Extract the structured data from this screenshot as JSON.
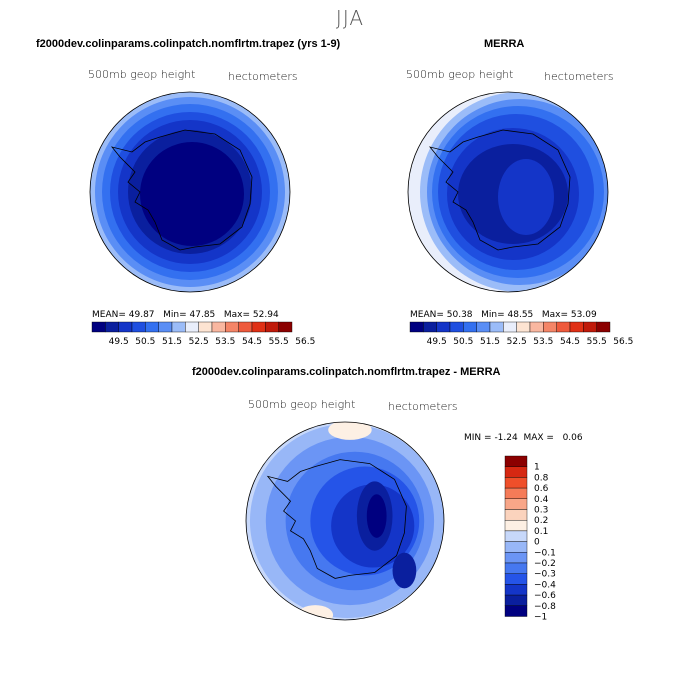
{
  "figure_title": "JJA",
  "colors": {
    "abs_scale": [
      "#000080",
      "#0a1f9e",
      "#1435c8",
      "#1f4fe0",
      "#3370f0",
      "#5a8ef5",
      "#9bbcf8",
      "#e9eefb",
      "#fde4d2",
      "#f9b7a0",
      "#f48567",
      "#ee5a3c",
      "#e03015",
      "#c01a0a",
      "#8b0000"
    ],
    "diff_scale": [
      "#000080",
      "#0a1f9e",
      "#1435c8",
      "#2554e8",
      "#4678f0",
      "#6b95f5",
      "#98b7f7",
      "#c7d8fa",
      "#fdf0e4",
      "#fbd3bd",
      "#f8a688",
      "#f57b58",
      "#ef4f2a",
      "#d62812",
      "#8b0000"
    ]
  },
  "chart_data": [
    {
      "type": "heatmap",
      "subtype": "polar-map",
      "panel_title": "f2000dev.colinparams.colinpatch.nomflrtm.trapez (yrs 1-9)",
      "field_label": "500mb geop height",
      "units_label": "hectometers",
      "stats": {
        "mean_label": "MEAN=",
        "mean": "49.87",
        "min_label": "Min=",
        "min": "47.85",
        "max_label": "Max=",
        "max": "52.94"
      },
      "colorbar_ticks": [
        "49.5",
        "50.5",
        "51.5",
        "52.5",
        "53.5",
        "54.5",
        "55.5",
        "56.5"
      ],
      "colorbar_range": [
        49.0,
        57.0
      ]
    },
    {
      "type": "heatmap",
      "subtype": "polar-map",
      "panel_title": "MERRA",
      "field_label": "500mb geop height",
      "units_label": "hectometers",
      "stats": {
        "mean_label": "MEAN=",
        "mean": "50.38",
        "min_label": "Min=",
        "min": "48.55",
        "max_label": "Max=",
        "max": "53.09"
      },
      "colorbar_ticks": [
        "49.5",
        "50.5",
        "51.5",
        "52.5",
        "53.5",
        "54.5",
        "55.5",
        "56.5"
      ],
      "colorbar_range": [
        49.0,
        57.0
      ]
    },
    {
      "type": "heatmap",
      "subtype": "polar-map-difference",
      "panel_title": "f2000dev.colinparams.colinpatch.nomflrtm.trapez - MERRA",
      "field_label": "500mb geop height",
      "units_label": "hectometers",
      "stats": {
        "min_label": "MIN =",
        "min": "-1.24",
        "max_label": "MAX =",
        "max": "0.06"
      },
      "colorbar_ticks": [
        "1",
        "0.8",
        "0.6",
        "0.4",
        "0.3",
        "0.2",
        "0.1",
        "0",
        "−0.1",
        "−0.2",
        "−0.3",
        "−0.4",
        "−0.6",
        "−0.8",
        "−1"
      ],
      "colorbar_range": [
        -1.0,
        1.0
      ]
    }
  ]
}
